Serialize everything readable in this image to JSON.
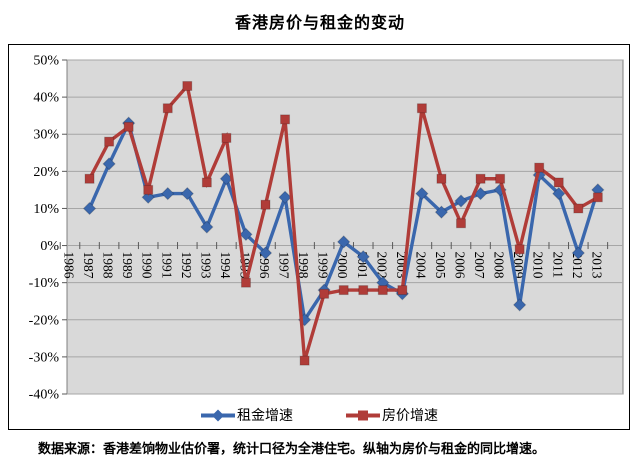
{
  "title": "香港房价与租金的变动",
  "caption": "数据来源：香港差饷物业估价署，统计口径为全港住宅。纵轴为房价与租金的同比增速。",
  "chart_data": {
    "type": "line",
    "title": "香港房价与租金的变动",
    "categories": [
      1986,
      1987,
      1988,
      1989,
      1990,
      1991,
      1992,
      1993,
      1994,
      1995,
      1996,
      1997,
      1998,
      1999,
      2000,
      2001,
      2002,
      2003,
      2004,
      2005,
      2006,
      2007,
      2008,
      2009,
      2010,
      2011,
      2012,
      2013
    ],
    "series": [
      {
        "name": "租金增速",
        "marker": "diamond",
        "color": "#3A67AD",
        "values": [
          null,
          10,
          22,
          33,
          13,
          14,
          14,
          5,
          18,
          3,
          -2,
          13,
          -20,
          -12,
          1,
          -3,
          -10,
          -13,
          14,
          9,
          12,
          14,
          15,
          -16,
          19,
          14,
          -2,
          15
        ]
      },
      {
        "name": "房价增速",
        "marker": "square",
        "color": "#B03C38",
        "values": [
          null,
          18,
          28,
          32,
          15,
          37,
          43,
          17,
          29,
          -10,
          11,
          34,
          -31,
          -13,
          -12,
          -12,
          -12,
          -12,
          37,
          18,
          6,
          18,
          18,
          -1,
          21,
          17,
          10,
          13
        ]
      }
    ],
    "ylim": [
      -40,
      50
    ],
    "ytick_step": 10,
    "ytick_format": "percent",
    "ytick_labels": [
      "50%",
      "40%",
      "30%",
      "20%",
      "10%",
      "0%",
      "-10%",
      "-20%",
      "-30%",
      "-40%"
    ],
    "grid": true,
    "legend_position": "bottom",
    "x_labels_rotated": true,
    "x_axis_at_zero": true,
    "plot_bg": "#D9D9D9",
    "grid_color": "#A6A6A6",
    "tick_color": "#595959",
    "frame_color": "#808080"
  }
}
